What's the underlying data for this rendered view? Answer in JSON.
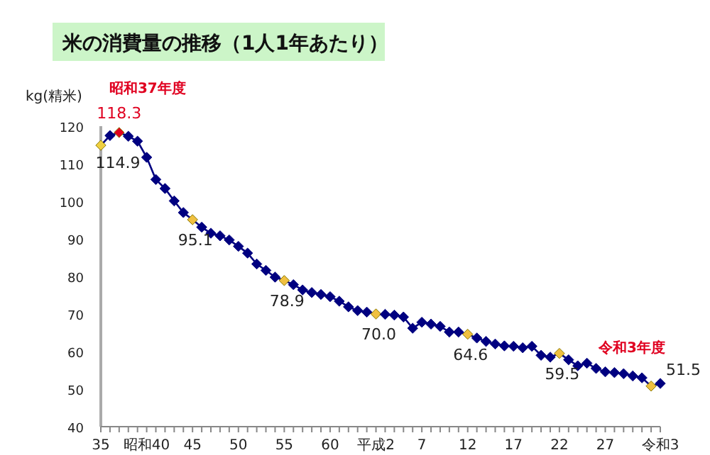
{
  "chart_data": {
    "type": "line",
    "title": "米の消費量の推移（1人1年あたり）",
    "ylabel": "kg(精米)",
    "categories": [
      "35",
      null,
      null,
      null,
      null,
      "昭和40",
      null,
      null,
      null,
      null,
      "45",
      null,
      null,
      null,
      null,
      "50",
      null,
      null,
      null,
      null,
      "55",
      null,
      null,
      null,
      null,
      "60",
      null,
      null,
      null,
      null,
      "平成2",
      null,
      null,
      null,
      null,
      "7",
      null,
      null,
      null,
      null,
      "12",
      null,
      null,
      null,
      null,
      "17",
      null,
      null,
      null,
      null,
      "22",
      null,
      null,
      null,
      null,
      "27",
      null,
      null,
      null,
      null,
      null,
      "令和3"
    ],
    "series": [
      {
        "color": "#000080",
        "values": [
          114.9,
          117.5,
          118.3,
          117.3,
          116.0,
          111.7,
          105.8,
          103.4,
          100.1,
          97.0,
          95.1,
          93.1,
          91.5,
          90.8,
          89.7,
          88.0,
          86.2,
          83.3,
          81.6,
          79.8,
          78.9,
          77.8,
          76.4,
          75.7,
          75.2,
          74.6,
          73.4,
          71.9,
          70.9,
          70.5,
          70.0,
          69.9,
          69.7,
          69.2,
          66.2,
          67.8,
          67.3,
          66.7,
          65.2,
          65.2,
          64.6,
          63.6,
          62.7,
          62.0,
          61.5,
          61.4,
          61.0,
          61.4,
          59.0,
          58.5,
          59.5,
          57.8,
          56.2,
          56.9,
          55.5,
          54.6,
          54.4,
          54.1,
          53.5,
          53.0,
          50.8,
          51.5
        ],
        "colors": [
          "#f0d040",
          "#000080",
          "#e00020",
          "#000080",
          "#000080",
          "#000080",
          "#000080",
          "#000080",
          "#000080",
          "#000080",
          "#f0c040",
          "#000080",
          "#000080",
          "#000080",
          "#000080",
          "#000080",
          "#000080",
          "#000080",
          "#000080",
          "#000080",
          "#f0c040",
          "#000080",
          "#000080",
          "#000080",
          "#000080",
          "#000080",
          "#000080",
          "#000080",
          "#000080",
          "#000080",
          "#f0c040",
          "#000080",
          "#000080",
          "#000080",
          "#000080",
          "#000080",
          "#000080",
          "#000080",
          "#000080",
          "#000080",
          "#f0c040",
          "#000080",
          "#000080",
          "#000080",
          "#000080",
          "#000080",
          "#000080",
          "#000080",
          "#000080",
          "#000080",
          "#f0c040",
          "#000080",
          "#000080",
          "#000080",
          "#000080",
          "#000080",
          "#000080",
          "#000080",
          "#000080",
          "#000080",
          "#f0c040",
          "#000080"
        ],
        "value_labels": [
          "114.9",
          null,
          "118.3",
          null,
          null,
          null,
          null,
          null,
          null,
          null,
          "95.1",
          null,
          null,
          null,
          null,
          null,
          null,
          null,
          null,
          null,
          "78.9",
          null,
          null,
          null,
          null,
          null,
          null,
          null,
          null,
          null,
          "70.0",
          null,
          null,
          null,
          null,
          null,
          null,
          null,
          null,
          null,
          "64.6",
          null,
          null,
          null,
          null,
          null,
          null,
          null,
          null,
          null,
          "59.5",
          null,
          null,
          null,
          null,
          null,
          null,
          null,
          null,
          null,
          null,
          "51.5"
        ]
      }
    ],
    "annotations": [
      "昭和37年度",
      "令和3年度"
    ],
    "ylim": [
      40,
      120
    ],
    "yticks": [
      40,
      50,
      60,
      70,
      80,
      90,
      100,
      110,
      120
    ],
    "marker": "diamond",
    "line_style": "solid",
    "grid": false
  }
}
